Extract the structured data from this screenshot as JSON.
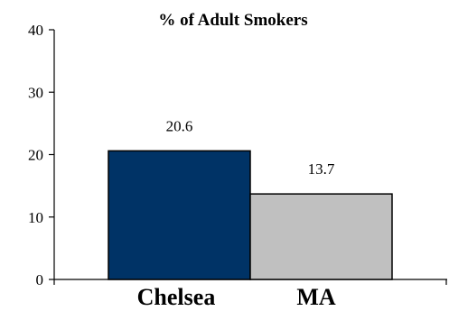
{
  "chart_data": {
    "type": "bar",
    "title": "% of Adult Smokers",
    "categories": [
      "Chelsea",
      "MA"
    ],
    "values": [
      20.6,
      13.7
    ],
    "data_labels": [
      "20.6",
      "13.7"
    ],
    "colors": [
      "#003366",
      "#c0c0c0"
    ],
    "ylim": [
      0,
      40
    ],
    "yticks": [
      0,
      10,
      20,
      30,
      40
    ],
    "xlabel": "",
    "ylabel": "",
    "grid": false,
    "legend": "none"
  }
}
